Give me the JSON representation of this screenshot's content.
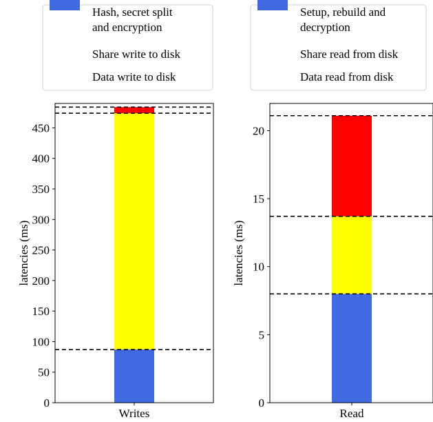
{
  "chart_data": [
    {
      "type": "bar",
      "stacked": true,
      "categories": [
        "Writes"
      ],
      "ylabel": "latencies (ms)",
      "ylim": [
        0,
        490
      ],
      "yticks": [
        0,
        50,
        100,
        150,
        200,
        250,
        300,
        350,
        400,
        450
      ],
      "series": [
        {
          "name": "Data write to disk",
          "color": "#4169e1",
          "values": [
            87
          ]
        },
        {
          "name": "Share write to disk",
          "color": "#ffff00",
          "values": [
            387
          ]
        },
        {
          "name": "Hash, secret split and encryption",
          "color": "#ff0000",
          "values": [
            10
          ]
        }
      ],
      "reference_lines": [
        87,
        474,
        484
      ],
      "legend": {
        "placement": "top",
        "entries": [
          "Hash, secret split and encryption",
          "Share write to disk",
          "Data write to disk"
        ]
      }
    },
    {
      "type": "bar",
      "stacked": true,
      "categories": [
        "Read"
      ],
      "ylabel": "latencies (ms)",
      "ylim": [
        0,
        22
      ],
      "yticks": [
        0,
        5,
        10,
        15,
        20
      ],
      "series": [
        {
          "name": "Data read from disk",
          "color": "#4169e1",
          "values": [
            8.0
          ]
        },
        {
          "name": "Share read from disk",
          "color": "#ffff00",
          "values": [
            5.7
          ]
        },
        {
          "name": "Setup, rebuild and decryption",
          "color": "#ff0000",
          "values": [
            7.4
          ]
        }
      ],
      "reference_lines": [
        8.0,
        13.7,
        21.1
      ],
      "legend": {
        "placement": "top",
        "entries": [
          "Setup, rebuild and decryption",
          "Share read from disk",
          "Data read from disk"
        ]
      }
    }
  ]
}
